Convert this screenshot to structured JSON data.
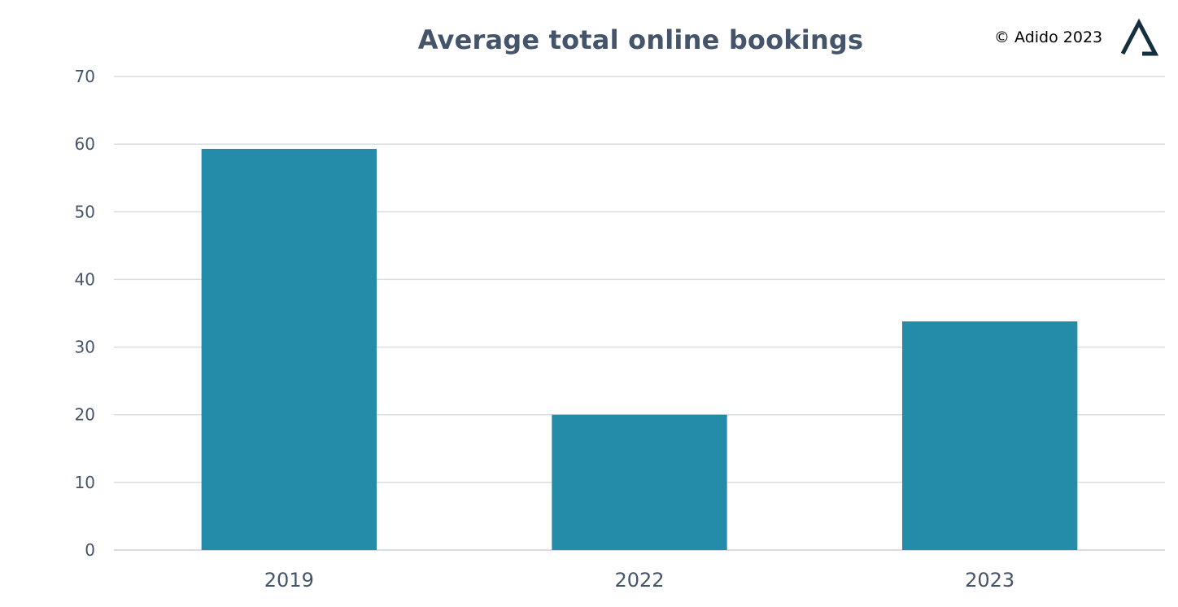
{
  "copyright": "© Adido 2023",
  "logo": {
    "icon": "adido-triangle-logo-icon",
    "color": "#14303f"
  },
  "colors": {
    "bar": "#248ba8",
    "grid": "#d9dde3",
    "text": "#44546a"
  },
  "chart_data": {
    "type": "bar",
    "title": "Average total online bookings",
    "xlabel": "",
    "ylabel": "",
    "categories": [
      "2019",
      "2022",
      "2023"
    ],
    "values": [
      59.3,
      20,
      33.8
    ],
    "ylim": [
      0,
      70
    ],
    "yticks": [
      0,
      10,
      20,
      30,
      40,
      50,
      60,
      70
    ],
    "grid": true,
    "legend": "none"
  }
}
